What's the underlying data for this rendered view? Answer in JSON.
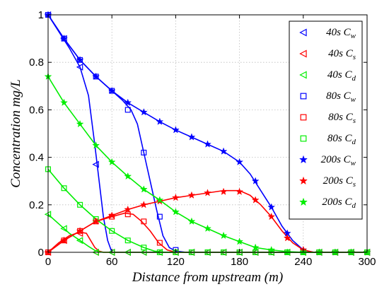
{
  "chart_data": {
    "type": "line",
    "xlabel": "Distance from upstream (m)",
    "ylabel": "Concentration  mg/L",
    "xlim": [
      0,
      300
    ],
    "ylim": [
      0,
      1
    ],
    "xticks": [
      0,
      60,
      120,
      180,
      240,
      300
    ],
    "yticks": [
      0,
      0.2,
      0.4,
      0.6,
      0.8,
      1
    ],
    "xtick_labels": [
      "0",
      "60",
      "120",
      "180",
      "240",
      "300"
    ],
    "ytick_labels": [
      "0",
      "0.2",
      "0.4",
      "0.6",
      "0.8",
      "1"
    ],
    "grid": true,
    "legend_position": "top-right",
    "series": [
      {
        "legend_time": "40s",
        "legend_var": "C",
        "legend_sub": "w",
        "color": "#0000ff",
        "marker": "triangle-left",
        "x": [
          0,
          15,
          30,
          45,
          60,
          75,
          90,
          105,
          120,
          135,
          150,
          165,
          180,
          195,
          210,
          225,
          240,
          255,
          270,
          285,
          300
        ],
        "y": [
          1.0,
          0.9,
          0.78,
          0.37,
          0.0,
          0,
          0,
          0,
          0,
          0,
          0,
          0,
          0,
          0,
          0,
          0,
          0,
          0,
          0,
          0,
          0
        ],
        "curve_x": [
          0,
          10,
          20,
          30,
          38,
          44,
          48,
          52,
          56,
          60,
          65,
          300
        ],
        "curve_y": [
          1.0,
          0.93,
          0.86,
          0.78,
          0.66,
          0.45,
          0.3,
          0.15,
          0.05,
          0.0,
          0.0,
          0.0
        ]
      },
      {
        "legend_time": "40s",
        "legend_var": "C",
        "legend_sub": "s",
        "color": "#ff0000",
        "marker": "triangle-left",
        "x": [
          0,
          15,
          30,
          45,
          60,
          75,
          90,
          105,
          120,
          135,
          150,
          165,
          180,
          195,
          210,
          225,
          240,
          255,
          270,
          285,
          300
        ],
        "y": [
          0.0,
          0.05,
          0.08,
          0.0,
          0,
          0,
          0,
          0,
          0,
          0,
          0,
          0,
          0,
          0,
          0,
          0,
          0,
          0,
          0,
          0,
          0
        ],
        "curve_x": [
          0,
          10,
          20,
          30,
          36,
          40,
          44,
          48,
          52,
          300
        ],
        "curve_y": [
          0.0,
          0.04,
          0.07,
          0.085,
          0.08,
          0.05,
          0.02,
          0.005,
          0.0,
          0.0
        ]
      },
      {
        "legend_time": "40s",
        "legend_var": "C",
        "legend_sub": "d",
        "color": "#00ee00",
        "marker": "triangle-left",
        "x": [
          0,
          15,
          30,
          45,
          60,
          75,
          90,
          105,
          120,
          135,
          150,
          165,
          180,
          195,
          210,
          225,
          240,
          255,
          270,
          285,
          300
        ],
        "y": [
          0.16,
          0.1,
          0.05,
          0.0,
          0,
          0,
          0,
          0,
          0,
          0,
          0,
          0,
          0,
          0,
          0,
          0,
          0,
          0,
          0,
          0,
          0
        ],
        "curve_x": [
          0,
          10,
          20,
          30,
          38,
          44,
          48,
          52,
          300
        ],
        "curve_y": [
          0.16,
          0.12,
          0.08,
          0.05,
          0.025,
          0.008,
          0.002,
          0.0,
          0.0
        ]
      },
      {
        "legend_time": "80s",
        "legend_var": "C",
        "legend_sub": "w",
        "color": "#0000ff",
        "marker": "square",
        "x": [
          0,
          15,
          30,
          45,
          60,
          75,
          90,
          105,
          120,
          135,
          150,
          165,
          180,
          195,
          210,
          225,
          240,
          255,
          270,
          285,
          300
        ],
        "y": [
          1.0,
          0.9,
          0.81,
          0.74,
          0.68,
          0.6,
          0.42,
          0.15,
          0.01,
          0,
          0,
          0,
          0,
          0,
          0,
          0,
          0,
          0,
          0,
          0,
          0
        ],
        "curve_x": [
          0,
          15,
          30,
          45,
          60,
          70,
          78,
          84,
          90,
          96,
          102,
          108,
          114,
          120,
          130,
          300
        ],
        "curve_y": [
          1.0,
          0.9,
          0.81,
          0.74,
          0.68,
          0.64,
          0.6,
          0.54,
          0.42,
          0.3,
          0.18,
          0.07,
          0.02,
          0.005,
          0.0,
          0.0
        ]
      },
      {
        "legend_time": "80s",
        "legend_var": "C",
        "legend_sub": "s",
        "color": "#ff0000",
        "marker": "square",
        "x": [
          0,
          15,
          30,
          45,
          60,
          75,
          90,
          105,
          120,
          135,
          150,
          165,
          180,
          195,
          210,
          225,
          240,
          255,
          270,
          285,
          300
        ],
        "y": [
          0.0,
          0.05,
          0.09,
          0.13,
          0.15,
          0.16,
          0.13,
          0.04,
          0.0,
          0,
          0,
          0,
          0,
          0,
          0,
          0,
          0,
          0,
          0,
          0,
          0
        ],
        "curve_x": [
          0,
          15,
          30,
          45,
          60,
          72,
          80,
          88,
          96,
          104,
          112,
          120,
          300
        ],
        "curve_y": [
          0.0,
          0.05,
          0.09,
          0.13,
          0.15,
          0.165,
          0.16,
          0.13,
          0.09,
          0.04,
          0.01,
          0.0,
          0.0
        ]
      },
      {
        "legend_time": "80s",
        "legend_var": "C",
        "legend_sub": "d",
        "color": "#00ee00",
        "marker": "square",
        "x": [
          0,
          15,
          30,
          45,
          60,
          75,
          90,
          105,
          120,
          135,
          150,
          165,
          180,
          195,
          210,
          225,
          240,
          255,
          270,
          285,
          300
        ],
        "y": [
          0.35,
          0.27,
          0.2,
          0.14,
          0.09,
          0.05,
          0.02,
          0.0,
          0.0,
          0,
          0,
          0,
          0,
          0,
          0,
          0,
          0,
          0,
          0,
          0,
          0
        ],
        "curve_x": [
          0,
          15,
          30,
          45,
          60,
          75,
          90,
          100,
          110,
          300
        ],
        "curve_y": [
          0.35,
          0.27,
          0.2,
          0.14,
          0.09,
          0.05,
          0.02,
          0.005,
          0.0,
          0.0
        ]
      },
      {
        "legend_time": "200s",
        "legend_var": "C",
        "legend_sub": "w",
        "color": "#0000ff",
        "marker": "star",
        "x": [
          0,
          15,
          30,
          45,
          60,
          75,
          90,
          105,
          120,
          135,
          150,
          165,
          180,
          195,
          210,
          225,
          240,
          255,
          270,
          285,
          300
        ],
        "y": [
          1.0,
          0.9,
          0.81,
          0.74,
          0.68,
          0.63,
          0.59,
          0.55,
          0.515,
          0.485,
          0.455,
          0.425,
          0.38,
          0.3,
          0.19,
          0.08,
          0.01,
          0.0,
          0.0,
          0.0,
          0.0
        ],
        "curve_x": [
          0,
          15,
          30,
          45,
          60,
          75,
          90,
          105,
          120,
          135,
          150,
          165,
          180,
          190,
          200,
          210,
          220,
          230,
          240,
          250,
          300
        ],
        "curve_y": [
          1.0,
          0.9,
          0.81,
          0.74,
          0.68,
          0.63,
          0.59,
          0.55,
          0.515,
          0.485,
          0.455,
          0.425,
          0.38,
          0.33,
          0.26,
          0.19,
          0.11,
          0.05,
          0.01,
          0.0,
          0.0
        ]
      },
      {
        "legend_time": "200s",
        "legend_var": "C",
        "legend_sub": "s",
        "color": "#ff0000",
        "marker": "star",
        "x": [
          0,
          15,
          30,
          45,
          60,
          75,
          90,
          105,
          120,
          135,
          150,
          165,
          180,
          195,
          210,
          225,
          240,
          255,
          270,
          285,
          300
        ],
        "y": [
          0.0,
          0.05,
          0.09,
          0.13,
          0.155,
          0.18,
          0.2,
          0.215,
          0.23,
          0.24,
          0.25,
          0.255,
          0.255,
          0.22,
          0.15,
          0.06,
          0.01,
          0.0,
          0.0,
          0.0,
          0.0
        ],
        "curve_x": [
          0,
          15,
          30,
          45,
          60,
          75,
          90,
          105,
          120,
          135,
          150,
          165,
          180,
          190,
          200,
          210,
          220,
          230,
          240,
          250,
          300
        ],
        "curve_y": [
          0.0,
          0.05,
          0.09,
          0.13,
          0.155,
          0.18,
          0.2,
          0.215,
          0.23,
          0.24,
          0.25,
          0.26,
          0.26,
          0.24,
          0.2,
          0.15,
          0.09,
          0.04,
          0.01,
          0.0,
          0.0
        ]
      },
      {
        "legend_time": "200s",
        "legend_var": "C",
        "legend_sub": "d",
        "color": "#00ee00",
        "marker": "star",
        "x": [
          0,
          15,
          30,
          45,
          60,
          75,
          90,
          105,
          120,
          135,
          150,
          165,
          180,
          195,
          210,
          225,
          240,
          255,
          270,
          285,
          300
        ],
        "y": [
          0.74,
          0.63,
          0.54,
          0.45,
          0.38,
          0.32,
          0.265,
          0.22,
          0.17,
          0.13,
          0.1,
          0.07,
          0.045,
          0.02,
          0.01,
          0.0,
          0.0,
          0.0,
          0.0,
          0.0,
          0.0
        ],
        "curve_x": [
          0,
          15,
          30,
          45,
          60,
          75,
          90,
          105,
          120,
          135,
          150,
          165,
          180,
          195,
          210,
          225,
          240,
          300
        ],
        "curve_y": [
          0.74,
          0.63,
          0.54,
          0.45,
          0.38,
          0.32,
          0.265,
          0.22,
          0.17,
          0.13,
          0.1,
          0.07,
          0.045,
          0.02,
          0.01,
          0.003,
          0.0,
          0.0
        ]
      }
    ]
  }
}
